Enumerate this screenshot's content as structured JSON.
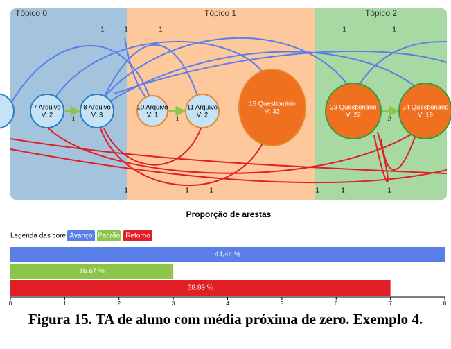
{
  "diagram": {
    "topics": [
      "Tópico 0",
      "Tópico 1",
      "Tópico 2"
    ],
    "nodes": [
      {
        "label": "7 Arquivo",
        "visits": "V: 2"
      },
      {
        "label": "8 Arquivo",
        "visits": "V: 3"
      },
      {
        "label": "10 Arquivo",
        "visits": "V: 1"
      },
      {
        "label": "11 Arquivo",
        "visits": "V: 2"
      },
      {
        "label": "15 Questionário",
        "visits": "V: 32"
      },
      {
        "label": "23 Questionário",
        "visits": "V: 22"
      },
      {
        "label": "24 Questionário",
        "visits": "V: 19"
      }
    ],
    "edge_labels": [
      "1",
      "1",
      "1",
      "1",
      "1",
      "1",
      "1",
      "2",
      "1",
      "1",
      "1",
      "1",
      "1",
      "1"
    ]
  },
  "chart_data": {
    "type": "hbar",
    "title": "Proporção de arestas",
    "legend_title": "Legenda das cores:",
    "legend": [
      "Avanço",
      "Padrão",
      "Retorno"
    ],
    "values": [
      8,
      3,
      7
    ],
    "labels": [
      "44.44 %",
      "16.67 %",
      "38.89 %"
    ],
    "colors": [
      "#5b7fe8",
      "#8cc54a",
      "#e01f27"
    ],
    "xlim": [
      0,
      8
    ],
    "xticks": [
      0,
      1,
      2,
      3,
      4,
      5,
      6,
      7,
      8
    ]
  },
  "caption": "Figura 15. TA de aluno com média próxima de zero. Exemplo 4."
}
